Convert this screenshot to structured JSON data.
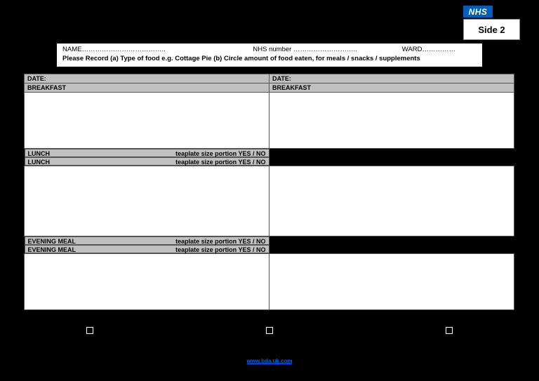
{
  "logo_text": "NHS",
  "side_label": "Side 2",
  "header": {
    "name_label": "NAME………………………………..",
    "nhs_number_label": "NHS number  ………………………..",
    "ward_label": "WARD……………",
    "instruction": "Please Record   (a) Type of food e.g. Cottage Pie    (b) Circle amount of food eaten, for meals / snacks / supplements"
  },
  "sections": {
    "date_label": "DATE:",
    "breakfast_label": "BREAKFAST",
    "lunch_label": "LUNCH",
    "evening_label": "EVENING MEAL",
    "portion_label": "teaplate size portion YES / NO",
    "portion_label_space": "teaplate size portion  YES / NO"
  },
  "link_text": "www.bda.uk.com",
  "colors": {
    "nhs_blue": "#005eb8",
    "row_header_bg": "#c0c0c0",
    "page_bg": "#000000",
    "cell_bg": "#ffffff",
    "link_color": "#0060ff"
  }
}
